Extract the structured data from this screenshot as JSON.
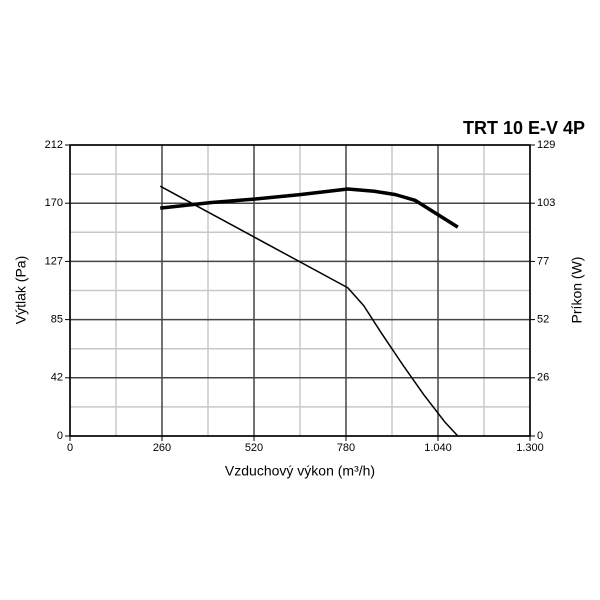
{
  "chart_data": {
    "type": "line",
    "title": "TRT 10 E-V 4P",
    "xlabel": "Vzduchový výkon (m³/h)",
    "ylabel": "Výtlak (Pa)",
    "y2label": "Príkon (W)",
    "xlim": [
      0,
      1300
    ],
    "xticks": [
      0,
      260,
      520,
      780,
      {
        "value": 1040,
        "label": "1.040"
      },
      {
        "value": 1300,
        "label": "1.300"
      }
    ],
    "xminor": [
      130,
      390,
      650,
      910,
      1170
    ],
    "ylim": [
      0,
      212
    ],
    "yticks": [
      0,
      {
        "value": 42.4,
        "label": "42"
      },
      {
        "value": 84.8,
        "label": "85"
      },
      {
        "value": 127.2,
        "label": "127"
      },
      {
        "value": 169.6,
        "label": "170"
      },
      212
    ],
    "yminor": [
      21.2,
      63.6,
      106,
      148.4,
      190.8
    ],
    "y2lim": [
      0,
      129
    ],
    "y2ticks": [
      0,
      {
        "value": 25.8,
        "label": "26"
      },
      {
        "value": 51.6,
        "label": "52"
      },
      {
        "value": 77.4,
        "label": "77"
      },
      {
        "value": 103.2,
        "label": "103"
      },
      129
    ],
    "grid": true,
    "series": [
      {
        "color": "#000000",
        "width": 1.5,
        "x": [
          255,
          520,
          785,
          830,
          880,
          940,
          1000,
          1060,
          1096
        ],
        "values": [
          182,
          145,
          108,
          95,
          75,
          52,
          30,
          10,
          0
        ]
      },
      {
        "color": "#000000",
        "width": 3.5,
        "axis": "y2",
        "x": [
          255,
          400,
          520,
          650,
          785,
          860,
          920,
          975,
          1096
        ],
        "values": [
          101,
          103.5,
          105,
          107,
          109.5,
          108.5,
          107,
          104.5,
          92.6
        ]
      }
    ]
  }
}
